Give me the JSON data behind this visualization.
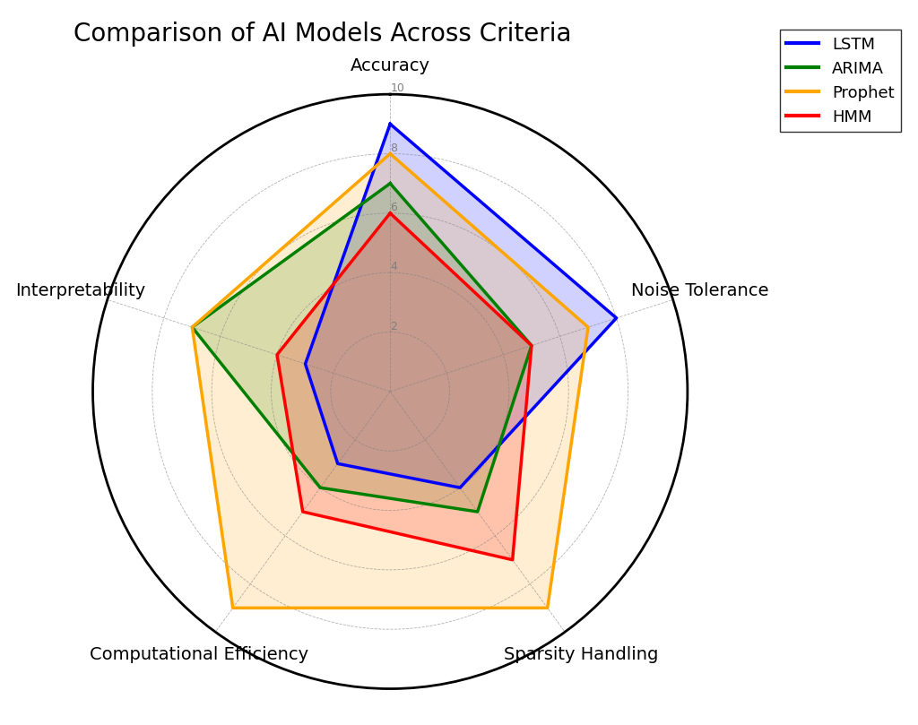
{
  "title": "Comparison of AI Models Across Criteria",
  "categories": [
    "Accuracy",
    "Noise Tolerance",
    "Sparsity Handling",
    "Computational Efficiency",
    "Interpretability"
  ],
  "models": [
    {
      "name": "LSTM",
      "values": [
        9,
        8,
        4,
        3,
        3
      ],
      "color": "#0000FF",
      "fill_alpha": 0.18
    },
    {
      "name": "ARIMA",
      "values": [
        7,
        5,
        5,
        4,
        7
      ],
      "color": "#008000",
      "fill_alpha": 0.18
    },
    {
      "name": "Prophet",
      "values": [
        8,
        7,
        9,
        9,
        7
      ],
      "color": "#FFA500",
      "fill_alpha": 0.18
    },
    {
      "name": "HMM",
      "values": [
        6,
        5,
        7,
        5,
        4
      ],
      "color": "#FF0000",
      "fill_alpha": 0.18
    }
  ],
  "ylim": [
    0,
    10
  ],
  "yticks": [
    2,
    4,
    6,
    8,
    10
  ],
  "ytick_labels": [
    "2",
    "4",
    "6",
    "8",
    "10"
  ],
  "line_width": 2.5,
  "background_color": "#ffffff",
  "title_fontsize": 20,
  "label_fontsize": 14,
  "legend_fontsize": 13
}
